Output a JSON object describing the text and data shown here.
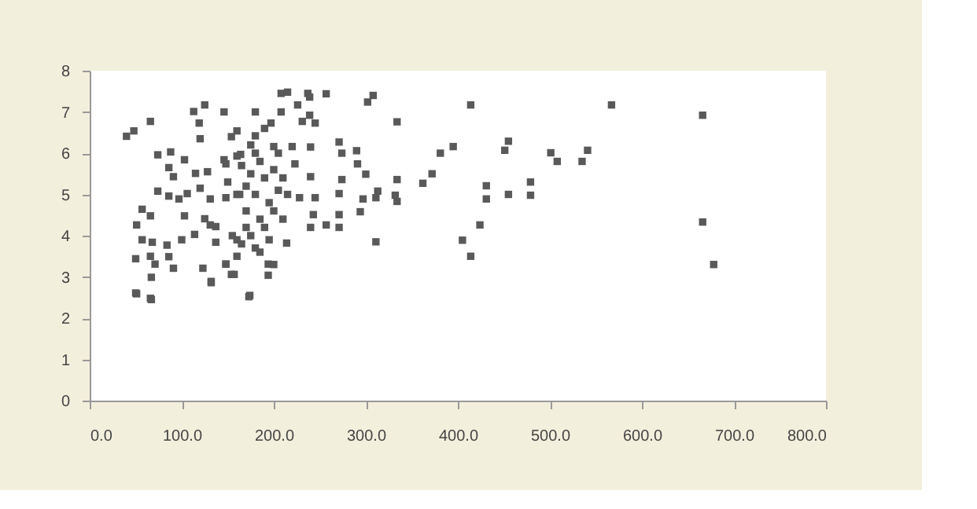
{
  "chart_data": {
    "type": "scatter",
    "marker": "square",
    "grid": false,
    "x": [
      567,
      666,
      666,
      678,
      414,
      334,
      381,
      395,
      455,
      451,
      501,
      508,
      541,
      535,
      334,
      372,
      362,
      431,
      431,
      455,
      479,
      479,
      424,
      405,
      414,
      334,
      332,
      313,
      311,
      308,
      208,
      215,
      237,
      239,
      257,
      302,
      146,
      180,
      208,
      197,
      226,
      231,
      245,
      239,
      160,
      180,
      146,
      164,
      200,
      220,
      240,
      223,
      271,
      274,
      290,
      291,
      300,
      240,
      274,
      271,
      245,
      228,
      297,
      311,
      294,
      271,
      243,
      240,
      257,
      271,
      170,
      175,
      180,
      185,
      190,
      195,
      200,
      205,
      180,
      170,
      185,
      190,
      175,
      165,
      180,
      195,
      210,
      215,
      200,
      160,
      150,
      165,
      175,
      190,
      205,
      210,
      170,
      185,
      200,
      155,
      160,
      148,
      157,
      194,
      194,
      174,
      214,
      50,
      66,
      132,
      173,
      40,
      48,
      66,
      113,
      125,
      119,
      120,
      154,
      74,
      88,
      103,
      86,
      91,
      115,
      128,
      148,
      160,
      74,
      86,
      97,
      106,
      120,
      131,
      148,
      163,
      57,
      66,
      103,
      125,
      137,
      51,
      57,
      68,
      84,
      100,
      114,
      131,
      137,
      160,
      50,
      66,
      71,
      86,
      91,
      123,
      148,
      132,
      154,
      67,
      51,
      67
    ],
    "values": [
      7.17,
      6.92,
      4.33,
      3.3,
      7.17,
      6.76,
      6.0,
      6.16,
      6.29,
      6.07,
      6.01,
      5.8,
      6.07,
      5.8,
      5.36,
      5.5,
      5.27,
      5.21,
      4.89,
      5.0,
      5.3,
      4.98,
      4.26,
      3.89,
      3.5,
      4.83,
      4.98,
      5.08,
      3.85,
      7.4,
      7.45,
      7.48,
      7.45,
      7.36,
      7.44,
      7.24,
      7.0,
      7.0,
      7.0,
      6.73,
      7.17,
      6.77,
      6.73,
      6.92,
      6.54,
      6.42,
      5.84,
      5.97,
      6.16,
      6.16,
      6.15,
      5.74,
      6.27,
      6.0,
      6.06,
      5.74,
      5.49,
      5.43,
      5.36,
      5.02,
      4.92,
      4.92,
      4.89,
      4.92,
      4.58,
      4.51,
      4.51,
      4.2,
      4.26,
      4.2,
      5.2,
      5.5,
      5.0,
      5.8,
      5.4,
      4.8,
      5.6,
      5.1,
      6.0,
      4.6,
      4.4,
      4.2,
      4.0,
      3.8,
      3.7,
      3.9,
      4.4,
      5.0,
      3.3,
      5.0,
      5.3,
      5.7,
      6.2,
      6.6,
      6.0,
      5.4,
      4.2,
      3.6,
      4.6,
      4.0,
      3.5,
      3.31,
      3.06,
      3.31,
      3.04,
      2.55,
      3.82,
      2.61,
      2.48,
      2.86,
      2.52,
      6.41,
      6.54,
      6.77,
      7.01,
      7.17,
      6.73,
      6.35,
      6.4,
      5.96,
      6.03,
      5.84,
      5.65,
      5.43,
      5.51,
      5.55,
      5.74,
      5.93,
      5.08,
      4.96,
      4.89,
      5.02,
      5.15,
      4.89,
      4.92,
      5.0,
      4.64,
      4.48,
      4.48,
      4.41,
      4.22,
      4.26,
      3.9,
      3.84,
      3.77,
      3.9,
      4.03,
      4.26,
      3.84,
      3.9,
      3.44,
      3.5,
      3.31,
      3.49,
      3.21,
      3.21,
      3.31,
      2.89,
      3.06,
      2.99,
      2.59,
      2.45
    ],
    "color": "#595959",
    "xlim": [
      0,
      800
    ],
    "xticks": [
      {
        "value": 0,
        "label": "0.0"
      },
      {
        "value": 100,
        "label": "100.0"
      },
      {
        "value": 200,
        "label": "200.0"
      },
      {
        "value": 300,
        "label": "300.0"
      },
      {
        "value": 400,
        "label": "400.0"
      },
      {
        "value": 500,
        "label": "500.0"
      },
      {
        "value": 600,
        "label": "600.0"
      },
      {
        "value": 700,
        "label": "700.0"
      },
      {
        "value": 800,
        "label": "800.0"
      }
    ],
    "ylim": [
      0,
      8
    ],
    "yticks": [
      0,
      1,
      2,
      3,
      4,
      5,
      6,
      7,
      8
    ]
  }
}
